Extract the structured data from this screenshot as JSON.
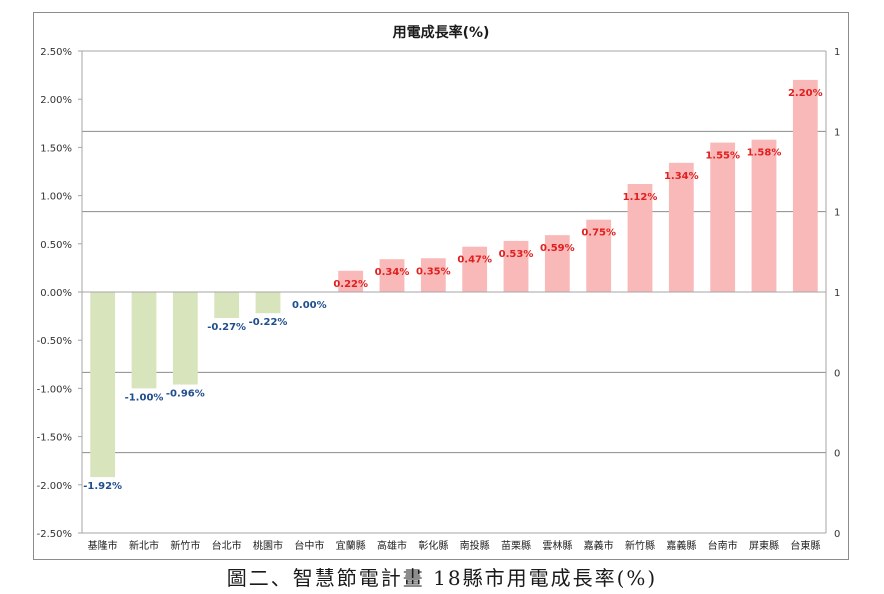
{
  "caption": "圖二、智慧節電計畫 18縣市用電成長率(%)",
  "chart_data": {
    "type": "bar",
    "title": "用電成長率(%)",
    "xlabel": "",
    "ylabel": "",
    "ylim": [
      -0.025,
      0.025
    ],
    "yticks": [
      "2.50%",
      "2.00%",
      "1.50%",
      "1.00%",
      "0.50%",
      "0.00%",
      "-0.50%",
      "-1.00%",
      "-1.50%",
      "-2.00%",
      "-2.50%"
    ],
    "secondary_yticks": [
      "1",
      "1",
      "1",
      "1",
      "0",
      "0",
      "0"
    ],
    "categories": [
      "基隆市",
      "新北市",
      "新竹市",
      "台北市",
      "桃園市",
      "台中市",
      "宜蘭縣",
      "高雄市",
      "彰化縣",
      "南投縣",
      "苗栗縣",
      "雲林縣",
      "嘉義市",
      "新竹縣",
      "嘉義縣",
      "台南市",
      "屏東縣",
      "台東縣"
    ],
    "values": [
      -0.0192,
      -0.01,
      -0.0096,
      -0.0027,
      -0.0022,
      0.0,
      0.0022,
      0.0034,
      0.0035,
      0.0047,
      0.0053,
      0.0059,
      0.0075,
      0.0112,
      0.0134,
      0.0155,
      0.0158,
      0.022
    ],
    "data_labels": [
      "-1.92%",
      "-1.00%",
      "-0.96%",
      "-0.27%",
      "-0.22%",
      "0.00%",
      "0.22%",
      "0.34%",
      "0.35%",
      "0.47%",
      "0.53%",
      "0.59%",
      "0.75%",
      "1.12%",
      "1.34%",
      "1.55%",
      "1.58%",
      "2.20%"
    ],
    "colors": {
      "negative_bar": "#d7e4bc",
      "positive_bar": "#f9b9b8",
      "negative_label": "#1f4e8c",
      "positive_label": "#e02020",
      "gridline": "#8c8c8c",
      "axis": "#a6a6a6"
    },
    "grid": true,
    "legend": "none"
  }
}
